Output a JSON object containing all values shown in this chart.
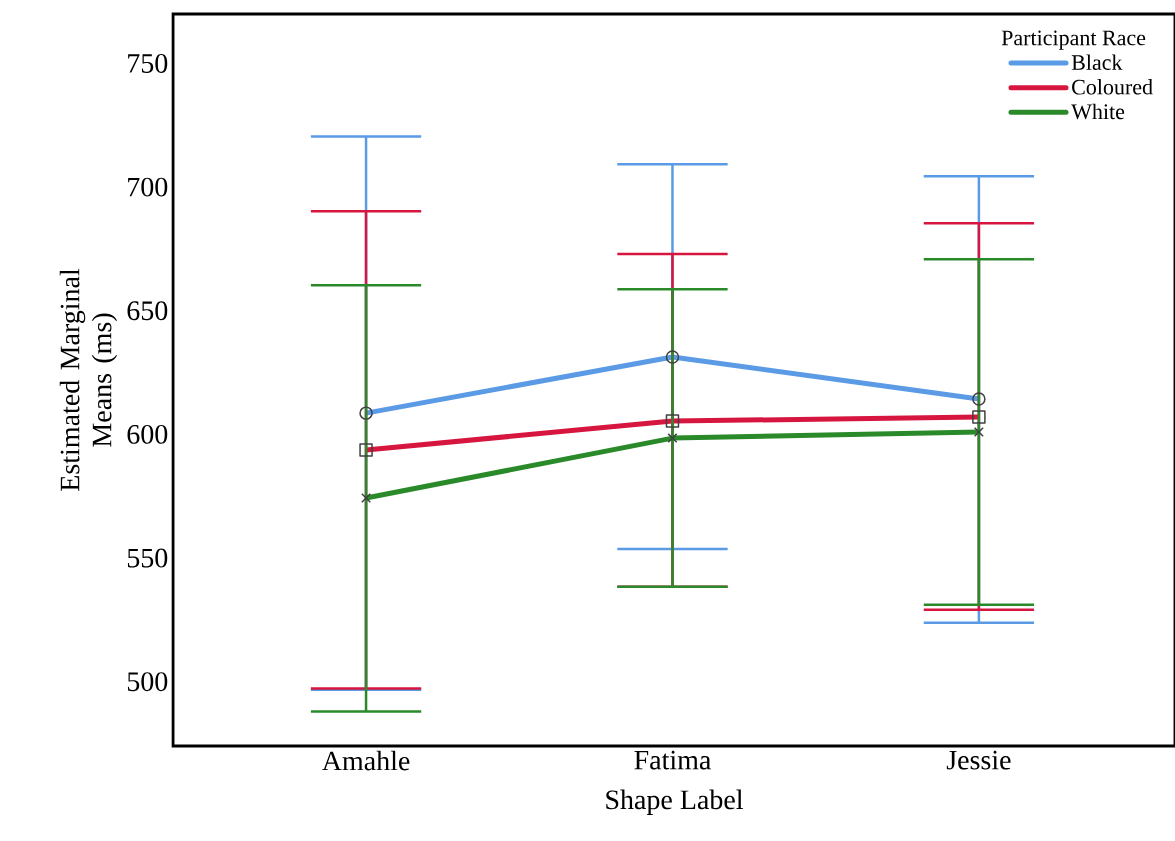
{
  "chart_data": {
    "type": "line",
    "xlabel": "Shape Label",
    "ylabel": "Estimated Marginal Means (ms)",
    "legend_title": "Participant Race",
    "legend": "top right",
    "grid": false,
    "categories": [
      "Amahle",
      "Fatima",
      "Jessie"
    ],
    "ylim": [
      474,
      770
    ],
    "yticks": [
      500,
      550,
      600,
      650,
      700,
      750
    ],
    "series": [
      {
        "name": "Black",
        "color": "#5b9be6",
        "marker": "circle",
        "values": [
          608.6,
          631.3,
          614.3
        ],
        "errors": [
          [
            496.7,
            720.5
          ],
          [
            553.7,
            709.2
          ],
          [
            523.8,
            704.4
          ]
        ]
      },
      {
        "name": "Coloured",
        "color": "#d6163f",
        "marker": "square",
        "values": [
          593.7,
          605.4,
          607.0
        ],
        "errors": [
          [
            497.2,
            690.2
          ],
          [
            538.4,
            672.9
          ],
          [
            529.1,
            685.4
          ]
        ]
      },
      {
        "name": "White",
        "color": "#2a8a2a",
        "marker": "cross",
        "values": [
          574.3,
          598.5,
          601.0
        ],
        "errors": [
          [
            487.9,
            660.3
          ],
          [
            538.4,
            658.7
          ],
          [
            531.1,
            670.8
          ]
        ]
      }
    ]
  }
}
